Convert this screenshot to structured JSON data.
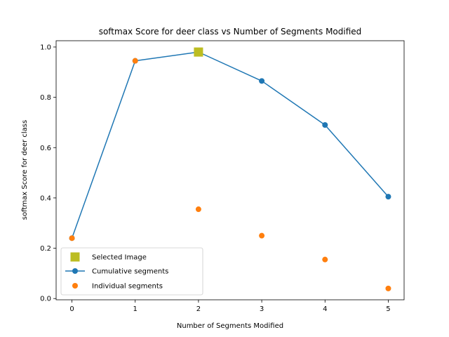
{
  "chart_data": {
    "type": "line",
    "title": "softmax Score for deer class vs Number of Segments Modified",
    "xlabel": "Number of Segments Modified",
    "ylabel": "softmax Score for deer class",
    "xlim": [
      -0.25,
      5.25
    ],
    "ylim": [
      -0.005,
      1.025
    ],
    "xticks": [
      0,
      1,
      2,
      3,
      4,
      5
    ],
    "xtick_labels": [
      "0",
      "1",
      "2",
      "3",
      "4",
      "5"
    ],
    "yticks": [
      0.0,
      0.2,
      0.4,
      0.6,
      0.8,
      1.0
    ],
    "ytick_labels": [
      "0.0",
      "0.2",
      "0.4",
      "0.6",
      "0.8",
      "1.0"
    ],
    "grid": false,
    "legend_position": "lower-left",
    "series": [
      {
        "name": "Selected Image",
        "style": "marker-square",
        "color": "#bcbd22",
        "x": [
          2
        ],
        "y": [
          0.98
        ]
      },
      {
        "name": "Cumulative segments",
        "style": "line-marker",
        "color": "#1f77b4",
        "x": [
          0,
          1,
          2,
          3,
          4,
          5
        ],
        "y": [
          0.24,
          0.945,
          0.98,
          0.865,
          0.69,
          0.405
        ]
      },
      {
        "name": "Individual segments",
        "style": "marker-circle",
        "color": "#ff7f0e",
        "x": [
          0,
          1,
          2,
          3,
          4,
          5
        ],
        "y": [
          0.24,
          0.945,
          0.355,
          0.25,
          0.155,
          0.04
        ]
      }
    ]
  }
}
